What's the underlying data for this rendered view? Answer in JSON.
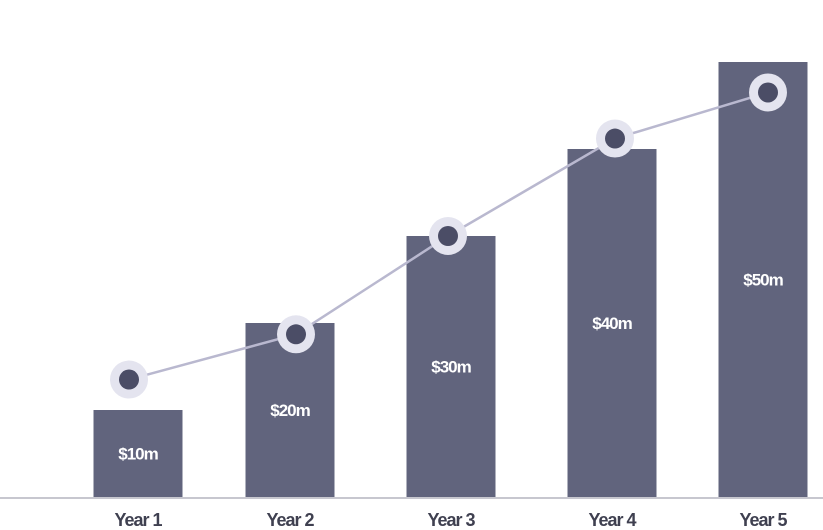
{
  "chart_data": {
    "type": "bar",
    "categories": [
      "Year 1",
      "Year 2",
      "Year 3",
      "Year 4",
      "Year 5"
    ],
    "values": [
      10,
      20,
      30,
      40,
      50
    ],
    "data_labels": [
      "$10m",
      "$20m",
      "$30m",
      "$40m",
      "$50m"
    ],
    "unit": "$m",
    "grid": false,
    "legend": "none",
    "overlay_line": {
      "type": "line",
      "marker": "circle",
      "values": [
        13.5,
        18.7,
        30.0,
        41.2,
        46.5
      ]
    },
    "colors": {
      "bar": "#61647d",
      "line": "#b9b8cf",
      "marker_fill": "#4b4d66",
      "marker_halo": "#e4e4ef",
      "axis": "#c7c7cf",
      "tick_text": "#3f4050",
      "bar_text": "#ffffff"
    }
  }
}
